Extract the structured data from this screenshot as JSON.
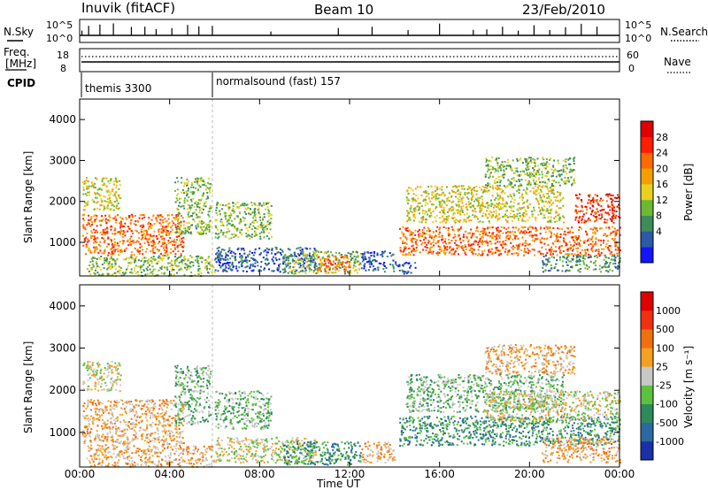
{
  "header": {
    "station": "Inuvik (fitACF)",
    "beam": "Beam 10",
    "date": "23/Feb/2010"
  },
  "top_panel": {
    "left_label": "N.Sky",
    "right_label": "N.Search",
    "left_ticks": [
      "10^5",
      "10^0"
    ],
    "right_ticks": [
      "10^5",
      "10^0"
    ],
    "freq_label_1": "Freq.",
    "freq_label_2": "[MHz]",
    "freq_ticks": [
      "18",
      "8"
    ],
    "nave_label": "Nave",
    "nave_ticks": [
      "60",
      "0"
    ],
    "cpid_label": "CPID",
    "cpid_segments": [
      {
        "name": "themis 3300",
        "start_hour": 0,
        "end_hour": 6
      },
      {
        "name": "normalsound (fast) 157",
        "start_hour": 6,
        "end_hour": 24
      }
    ]
  },
  "x_axis": {
    "title": "Time UT",
    "ticks": [
      "00:00",
      "04:00",
      "08:00",
      "12:00",
      "16:00",
      "20:00",
      "00:00"
    ]
  },
  "power_panel": {
    "ylabel": "Slant Range [km]",
    "yticks": [
      "4000",
      "3000",
      "2000",
      "1000"
    ],
    "colorbar_title": "Power [dB]",
    "colorbar_ticks": [
      "28",
      "24",
      "20",
      "16",
      "12",
      "8",
      "4"
    ],
    "colors": [
      "#1414ff",
      "#2a5aa8",
      "#3d8c5a",
      "#6cb832",
      "#e8d020",
      "#f5a000",
      "#ff6a00",
      "#ff1e00",
      "#e00000"
    ]
  },
  "velocity_panel": {
    "ylabel": "Slant Range [km]",
    "yticks": [
      "4000",
      "3000",
      "2000",
      "1000"
    ],
    "colorbar_title": "Velocity [m s⁻¹]",
    "colorbar_ticks": [
      "1000",
      "500",
      "100",
      "25",
      "-25",
      "-100",
      "-500",
      "-1000"
    ],
    "colors": [
      "#1a2fa8",
      "#2a6aa0",
      "#2f8a5a",
      "#5cc040",
      "#c8c8c8",
      "#f5a020",
      "#f07010",
      "#f03010",
      "#e00000"
    ]
  },
  "chart_data": {
    "type": "heatmap",
    "x_unit": "hours UT",
    "x_range": [
      0,
      24
    ],
    "y_unit": "km",
    "y_range": [
      180,
      4500
    ],
    "power_regions": [
      {
        "t0": 0.1,
        "t1": 4.6,
        "r0": 700,
        "r1": 1700,
        "level": 6
      },
      {
        "t0": 0.1,
        "t1": 1.8,
        "r0": 1800,
        "r1": 2600,
        "level": 4
      },
      {
        "t0": 4.2,
        "t1": 5.8,
        "r0": 1200,
        "r1": 2600,
        "level": 3
      },
      {
        "t0": 0.3,
        "t1": 6.0,
        "r0": 200,
        "r1": 700,
        "level": 3
      },
      {
        "t0": 6.0,
        "t1": 8.5,
        "r0": 1100,
        "r1": 2000,
        "level": 3
      },
      {
        "t0": 6.0,
        "t1": 10.5,
        "r0": 300,
        "r1": 900,
        "level": 1
      },
      {
        "t0": 9.0,
        "t1": 12.5,
        "r0": 250,
        "r1": 800,
        "level": 3
      },
      {
        "t0": 10.5,
        "t1": 12.0,
        "r0": 300,
        "r1": 700,
        "level": 6
      },
      {
        "t0": 12.5,
        "t1": 14.0,
        "r0": 300,
        "r1": 800,
        "level": 1
      },
      {
        "t0": 14.0,
        "t1": 14.9,
        "r0": 250,
        "r1": 550,
        "level": 1
      },
      {
        "t0": 14.2,
        "t1": 24.0,
        "r0": 700,
        "r1": 1400,
        "level": 6
      },
      {
        "t0": 14.5,
        "t1": 21.5,
        "r0": 1500,
        "r1": 2400,
        "level": 4
      },
      {
        "t0": 18.0,
        "t1": 22.0,
        "r0": 2400,
        "r1": 3100,
        "level": 3
      },
      {
        "t0": 22.0,
        "t1": 24.0,
        "r0": 1500,
        "r1": 2200,
        "level": 7
      },
      {
        "t0": 20.5,
        "t1": 24.0,
        "r0": 300,
        "r1": 700,
        "level": 2
      }
    ],
    "velocity_regions": [
      {
        "t0": 0.1,
        "t1": 4.6,
        "r0": 700,
        "r1": 1800,
        "level": 5
      },
      {
        "t0": 0.1,
        "t1": 1.8,
        "r0": 2000,
        "r1": 2700,
        "level": 4
      },
      {
        "t0": 4.2,
        "t1": 5.8,
        "r0": 1200,
        "r1": 2600,
        "level": 3
      },
      {
        "t0": 0.3,
        "t1": 6.0,
        "r0": 200,
        "r1": 700,
        "level": 5
      },
      {
        "t0": 6.0,
        "t1": 8.5,
        "r0": 1100,
        "r1": 2000,
        "level": 3
      },
      {
        "t0": 6.0,
        "t1": 10.5,
        "r0": 300,
        "r1": 900,
        "level": 4
      },
      {
        "t0": 9.0,
        "t1": 12.5,
        "r0": 250,
        "r1": 800,
        "level": 2
      },
      {
        "t0": 12.5,
        "t1": 14.0,
        "r0": 300,
        "r1": 800,
        "level": 5
      },
      {
        "t0": 14.2,
        "t1": 24.0,
        "r0": 700,
        "r1": 1400,
        "level": 2
      },
      {
        "t0": 14.5,
        "t1": 21.5,
        "r0": 1500,
        "r1": 2400,
        "level": 3
      },
      {
        "t0": 18.0,
        "t1": 24.0,
        "r0": 1300,
        "r1": 2000,
        "level": 4
      },
      {
        "t0": 18.0,
        "t1": 22.0,
        "r0": 2400,
        "r1": 3100,
        "level": 5
      },
      {
        "t0": 20.5,
        "t1": 24.0,
        "r0": 300,
        "r1": 900,
        "level": 5
      }
    ],
    "nsky_spikes_hours": [
      0.1,
      0.4,
      0.9,
      1.5,
      2.3,
      2.9,
      3.4,
      4.1,
      4.8,
      5.3,
      5.9,
      8.5,
      11.5,
      13.0,
      14.6,
      16.0,
      17.5,
      18.1,
      18.8,
      19.5,
      20.2,
      20.9,
      21.6,
      22.3,
      23.0
    ]
  }
}
